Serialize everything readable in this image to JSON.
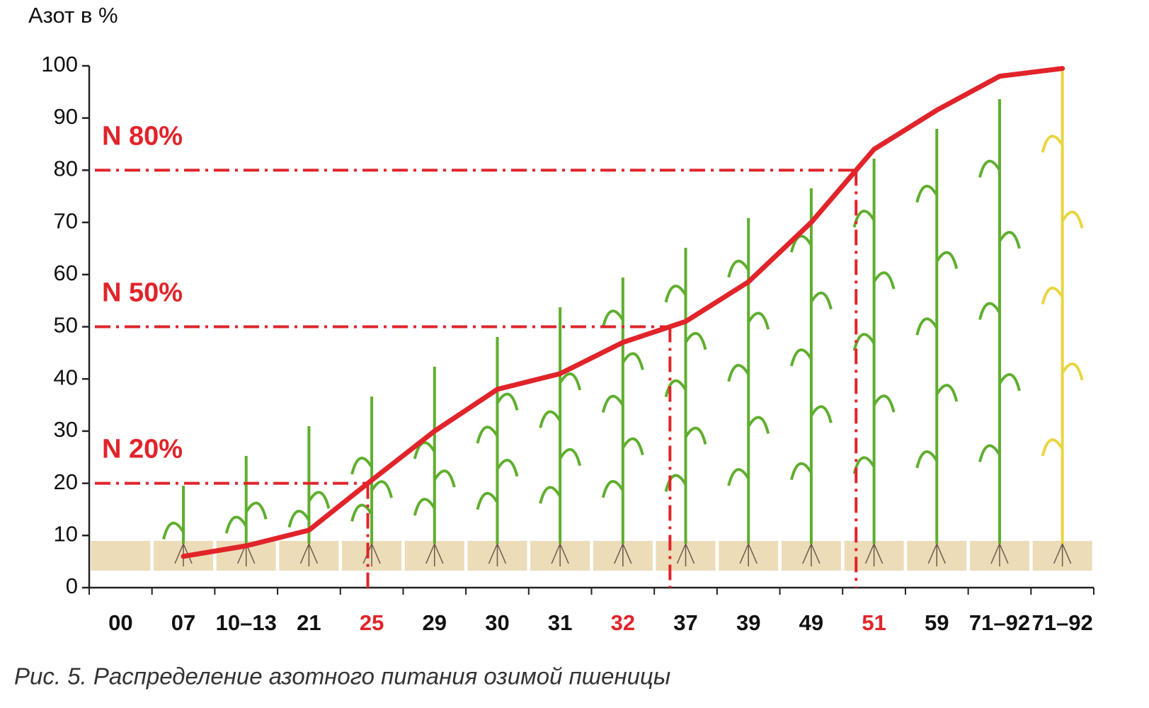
{
  "chart_data": {
    "type": "line",
    "y_label": "Азот в %",
    "caption": "Рис. 5. Распределение азотного питания озимой пшеницы",
    "categories": [
      "00",
      "07",
      "10–13",
      "21",
      "25",
      "29",
      "30",
      "31",
      "32",
      "37",
      "39",
      "49",
      "51",
      "59",
      "71–92",
      "71–92"
    ],
    "values": [
      null,
      6,
      8,
      11,
      20.6,
      30,
      38,
      41,
      47,
      51,
      58.6,
      70,
      84,
      91.5,
      98,
      99.5
    ],
    "color": "#e0242a",
    "highlight": [
      4,
      8,
      12
    ],
    "thresholds": [
      {
        "label": "N 20%",
        "value": 20
      },
      {
        "label": "N 50%",
        "value": 50
      },
      {
        "label": "N 80%",
        "value": 80
      }
    ],
    "ylim": [
      0,
      100
    ],
    "yticks": [
      0,
      10,
      20,
      30,
      40,
      50,
      60,
      70,
      80,
      90,
      100
    ]
  }
}
